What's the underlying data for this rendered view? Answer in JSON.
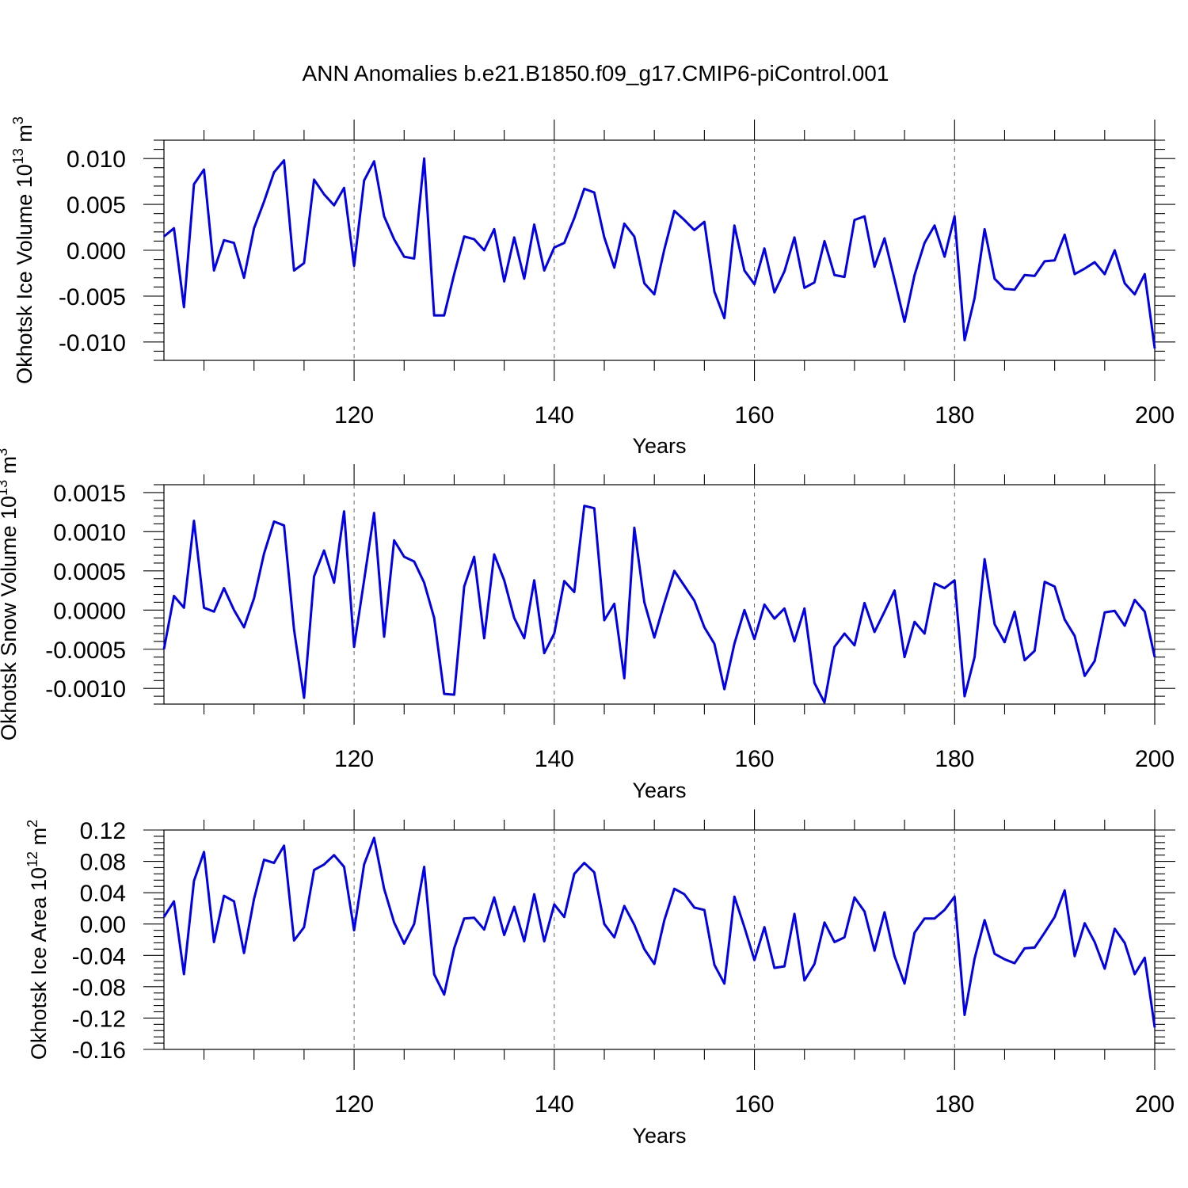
{
  "title": "ANN Anomalies b.e21.B1850.f09_g17.CMIP6-piControl.001",
  "line_color": "#0000ee",
  "chart_data": [
    {
      "type": "line",
      "ylabel": "Okhotsk Ice Volume",
      "ylabel_unit": "10^13 m^3",
      "ylabel_base": "10",
      "ylabel_exp": "13",
      "ylabel_m": "m",
      "ylabel_mexp": "3",
      "xlabel": "Years",
      "xlim": [
        101,
        200
      ],
      "ylim": [
        -0.012,
        0.012
      ],
      "xticks": [
        120,
        140,
        160,
        180,
        200
      ],
      "xtick_labels": [
        "120",
        "140",
        "160",
        "180",
        "200"
      ],
      "yticks": [
        0.01,
        0.005,
        0.0,
        -0.005,
        -0.01
      ],
      "ytick_labels": [
        "0.010",
        "0.005",
        "0.000",
        "-0.005",
        "-0.010"
      ],
      "grid": "vertical dashed at major x ticks",
      "x_start": 101,
      "values": [
        0.0015,
        0.0024,
        -0.0062,
        0.0072,
        0.0088,
        -0.0022,
        0.0011,
        0.0008,
        -0.003,
        0.0024,
        0.0053,
        0.0085,
        0.0098,
        -0.0022,
        -0.0014,
        0.0077,
        0.0061,
        0.0049,
        0.0068,
        -0.0017,
        0.0076,
        0.0097,
        0.0037,
        0.0012,
        -0.0007,
        -0.0009,
        0.01,
        -0.0071,
        -0.0071,
        -0.0026,
        0.0015,
        0.0012,
        0.0,
        0.0023,
        -0.0034,
        0.0014,
        -0.0031,
        0.0028,
        -0.0022,
        0.0003,
        0.0008,
        0.0035,
        0.0067,
        0.0063,
        0.0014,
        -0.0019,
        0.0029,
        0.0015,
        -0.0036,
        -0.0048,
        0.0001,
        0.0043,
        0.0033,
        0.0022,
        0.0031,
        -0.0045,
        -0.0074,
        0.0027,
        -0.0022,
        -0.0037,
        0.0002,
        -0.0046,
        -0.0023,
        0.0014,
        -0.0041,
        -0.0035,
        0.001,
        -0.0027,
        -0.0029,
        0.0033,
        0.0037,
        -0.0018,
        0.0013,
        -0.0032,
        -0.0078,
        -0.0027,
        0.0008,
        0.0027,
        -0.0007,
        0.0037,
        -0.0098,
        -0.0052,
        0.0023,
        -0.0031,
        -0.0042,
        -0.0043,
        -0.0027,
        -0.0028,
        -0.0012,
        -0.0011,
        0.0017,
        -0.0026,
        -0.002,
        -0.0013,
        -0.0026,
        0.0,
        -0.0036,
        -0.0048,
        -0.0026,
        -0.0107
      ]
    },
    {
      "type": "line",
      "ylabel": "Okhotsk Snow Volume",
      "ylabel_unit": "10^13 m^3",
      "ylabel_base": "10",
      "ylabel_exp": "13",
      "ylabel_m": "m",
      "ylabel_mexp": "3",
      "xlabel": "Years",
      "xlim": [
        101,
        200
      ],
      "ylim": [
        -0.0012,
        0.0016
      ],
      "xticks": [
        120,
        140,
        160,
        180,
        200
      ],
      "xtick_labels": [
        "120",
        "140",
        "160",
        "180",
        "200"
      ],
      "yticks": [
        0.0015,
        0.001,
        0.0005,
        0.0,
        -0.0005,
        -0.001
      ],
      "ytick_labels": [
        "0.0015",
        "0.0010",
        "0.0005",
        "0.0000",
        "-0.0005",
        "-0.0010"
      ],
      "grid": "vertical dashed at major x ticks",
      "x_start": 101,
      "values": [
        -0.0005,
        0.00018,
        3e-05,
        0.00114,
        3e-05,
        -2e-05,
        0.00028,
        0.0,
        -0.00022,
        0.00015,
        0.00072,
        0.00113,
        0.00108,
        -0.00025,
        -0.00112,
        0.00043,
        0.00076,
        0.00035,
        0.00126,
        -0.00047,
        0.00038,
        0.00124,
        -0.00034,
        0.00089,
        0.00068,
        0.00062,
        0.00035,
        -0.0001,
        -0.00107,
        -0.00108,
        0.0003,
        0.00068,
        -0.00036,
        0.00071,
        0.00038,
        -0.0001,
        -0.00036,
        0.00038,
        -0.00055,
        -0.0003,
        0.00037,
        0.00023,
        0.00133,
        0.0013,
        -0.00013,
        8e-05,
        -0.00087,
        0.00105,
        0.0001,
        -0.00035,
        9e-05,
        0.0005,
        0.00031,
        0.00012,
        -0.00022,
        -0.00043,
        -0.00101,
        -0.00043,
        0.0,
        -0.00037,
        7e-05,
        -0.00011,
        2e-05,
        -0.0004,
        2e-05,
        -0.00093,
        -0.00118,
        -0.00047,
        -0.0003,
        -0.00045,
        9e-05,
        -0.00028,
        -2e-05,
        0.00025,
        -0.0006,
        -0.00015,
        -0.0003,
        0.00034,
        0.00028,
        0.00038,
        -0.0011,
        -0.0006,
        0.00065,
        -0.00018,
        -0.00041,
        -2e-05,
        -0.00064,
        -0.00052,
        0.00036,
        0.0003,
        -0.00012,
        -0.00033,
        -0.00084,
        -0.00065,
        -3e-05,
        -1e-05,
        -0.0002,
        0.00013,
        -2e-05,
        -0.0006
      ]
    },
    {
      "type": "line",
      "ylabel": "Okhotsk Ice Area",
      "ylabel_unit": "10^12 m^2",
      "ylabel_base": "10",
      "ylabel_exp": "12",
      "ylabel_m": "m",
      "ylabel_mexp": "2",
      "xlabel": "Years",
      "xlim": [
        101,
        200
      ],
      "ylim": [
        -0.16,
        0.12
      ],
      "xticks": [
        120,
        140,
        160,
        180,
        200
      ],
      "xtick_labels": [
        "120",
        "140",
        "160",
        "180",
        "200"
      ],
      "yticks": [
        0.12,
        0.08,
        0.04,
        0.0,
        -0.04,
        -0.08,
        -0.12,
        -0.16
      ],
      "ytick_labels": [
        "0.12",
        "0.08",
        "0.04",
        "0.00",
        "-0.04",
        "-0.08",
        "-0.12",
        "-0.16"
      ],
      "grid": "vertical dashed at major x ticks",
      "x_start": 101,
      "values": [
        0.009,
        0.029,
        -0.064,
        0.055,
        0.092,
        -0.023,
        0.036,
        0.029,
        -0.037,
        0.032,
        0.082,
        0.078,
        0.1,
        -0.021,
        -0.004,
        0.069,
        0.076,
        0.088,
        0.073,
        -0.008,
        0.076,
        0.11,
        0.045,
        0.002,
        -0.025,
        0.0,
        0.073,
        -0.064,
        -0.09,
        -0.031,
        0.007,
        0.008,
        -0.007,
        0.034,
        -0.014,
        0.022,
        -0.022,
        0.038,
        -0.022,
        0.025,
        0.009,
        0.064,
        0.078,
        0.066,
        0.0,
        -0.017,
        0.023,
        -0.001,
        -0.032,
        -0.051,
        0.005,
        0.045,
        0.038,
        0.021,
        0.018,
        -0.052,
        -0.076,
        0.035,
        -0.004,
        -0.046,
        -0.004,
        -0.056,
        -0.054,
        0.013,
        -0.072,
        -0.051,
        0.002,
        -0.023,
        -0.017,
        0.034,
        0.016,
        -0.034,
        0.015,
        -0.041,
        -0.076,
        -0.011,
        0.007,
        0.007,
        0.018,
        0.035,
        -0.116,
        -0.044,
        0.005,
        -0.038,
        -0.045,
        -0.05,
        -0.031,
        -0.03,
        -0.011,
        0.009,
        0.043,
        -0.041,
        0.001,
        -0.023,
        -0.057,
        -0.006,
        -0.024,
        -0.064,
        -0.043,
        -0.132
      ]
    }
  ]
}
